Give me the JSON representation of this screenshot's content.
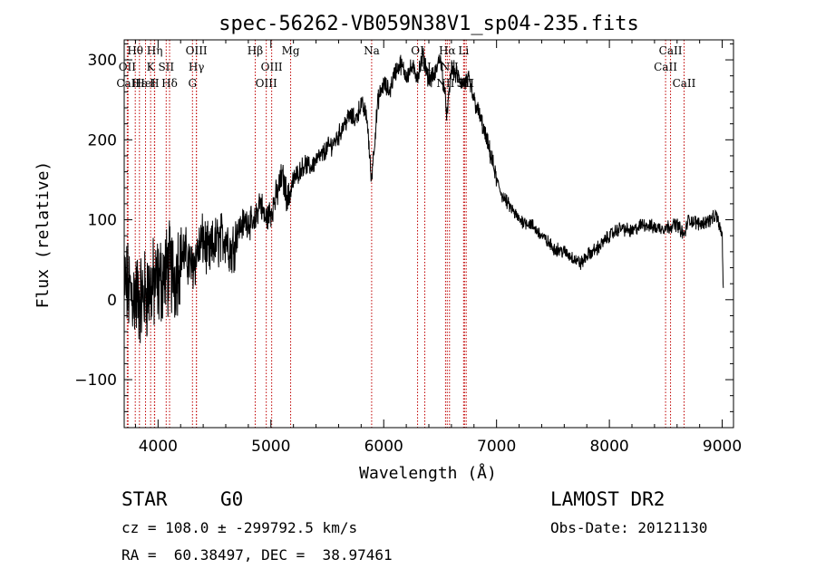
{
  "chart_data": {
    "type": "line",
    "title": "spec-56262-VB059N38V1_sp04-235.fits",
    "xlabel": "Wavelength (Å)",
    "ylabel": "Flux (relative)",
    "xlim": [
      3700,
      9100
    ],
    "ylim": [
      -160,
      325
    ],
    "xticks": [
      4000,
      5000,
      6000,
      7000,
      8000,
      9000
    ],
    "yticks": [
      -100,
      0,
      100,
      200,
      300
    ],
    "series": [
      {
        "x": [
          3700,
          3750,
          3800,
          3850,
          3900,
          3950,
          4000,
          4050,
          4100,
          4150,
          4200,
          4250,
          4300,
          4350,
          4400,
          4450,
          4500,
          4550,
          4600,
          4650,
          4700,
          4750,
          4800,
          4850,
          4900,
          4950,
          5000,
          5050,
          5100,
          5150,
          5200,
          5250,
          5300,
          5350,
          5400,
          5450,
          5500,
          5550,
          5600,
          5650,
          5700,
          5750,
          5800,
          5850,
          5890,
          5950,
          6000,
          6050,
          6100,
          6150,
          6200,
          6250,
          6300,
          6350,
          6400,
          6450,
          6500,
          6563,
          6600,
          6650,
          6700,
          6750,
          6800,
          6850,
          6900,
          6950,
          7000,
          7050,
          7100,
          7150,
          7200,
          7300,
          7400,
          7500,
          7600,
          7700,
          7750,
          7800,
          7900,
          8000,
          8100,
          8200,
          8300,
          8400,
          8500,
          8600,
          8662,
          8700,
          8800,
          8900,
          8950,
          9000,
          9010
        ],
        "values": [
          20,
          10,
          5,
          0,
          10,
          15,
          20,
          30,
          40,
          30,
          60,
          55,
          40,
          60,
          75,
          55,
          70,
          75,
          80,
          60,
          85,
          95,
          100,
          90,
          125,
          100,
          110,
          130,
          155,
          125,
          150,
          160,
          170,
          165,
          175,
          180,
          190,
          195,
          205,
          220,
          230,
          225,
          245,
          230,
          150,
          250,
          270,
          260,
          285,
          295,
          280,
          290,
          280,
          305,
          275,
          280,
          305,
          230,
          290,
          280,
          270,
          275,
          250,
          230,
          205,
          180,
          150,
          130,
          120,
          110,
          100,
          95,
          80,
          65,
          60,
          50,
          45,
          55,
          65,
          80,
          90,
          85,
          95,
          90,
          90,
          95,
          80,
          100,
          95,
          100,
          105,
          80,
          5
        ]
      }
    ],
    "lines": [
      {
        "label": "Hθ",
        "x": 3798
      },
      {
        "label": "OII",
        "x": 3727
      },
      {
        "label": "CaII",
        "x": 3734
      },
      {
        "label": "Hε",
        "x": 3835
      },
      {
        "label": "HeI",
        "x": 3889
      },
      {
        "label": "Hη",
        "x": 3970
      },
      {
        "label": "K",
        "x": 3934
      },
      {
        "label": "SII",
        "x": 4072
      },
      {
        "label": "H",
        "x": 3968
      },
      {
        "label": "Hδ",
        "x": 4102
      },
      {
        "label": "OIII",
        "x": 4340
      },
      {
        "label": "Hγ",
        "x": 4340
      },
      {
        "label": "G",
        "x": 4305
      },
      {
        "label": "Hβ",
        "x": 4861
      },
      {
        "label": "OIII",
        "x": 5007
      },
      {
        "label": "OIII",
        "x": 4959
      },
      {
        "label": "Mg",
        "x": 5175
      },
      {
        "label": "Na",
        "x": 5893
      },
      {
        "label": "OI",
        "x": 6300
      },
      {
        "label": "OI",
        "x": 6364
      },
      {
        "label": "Hα",
        "x": 6563
      },
      {
        "label": "NII",
        "x": 6583
      },
      {
        "label": "NII",
        "x": 6548
      },
      {
        "label": "SII",
        "x": 6716
      },
      {
        "label": "Li",
        "x": 6708
      },
      {
        "label": "SII",
        "x": 6731
      },
      {
        "label": "CaII",
        "x": 8542
      },
      {
        "label": "CaII",
        "x": 8498
      },
      {
        "label": "CaII",
        "x": 8662
      }
    ],
    "line_color": "#c00000"
  },
  "info": {
    "object_type": "STAR",
    "subclass": "G0",
    "survey": "LAMOST DR2",
    "cz": "cz = 108.0 ± -299792.5 km/s",
    "obs_date": "Obs-Date: 20121130",
    "coords": "RA =  60.38497, DEC =  38.97461"
  }
}
